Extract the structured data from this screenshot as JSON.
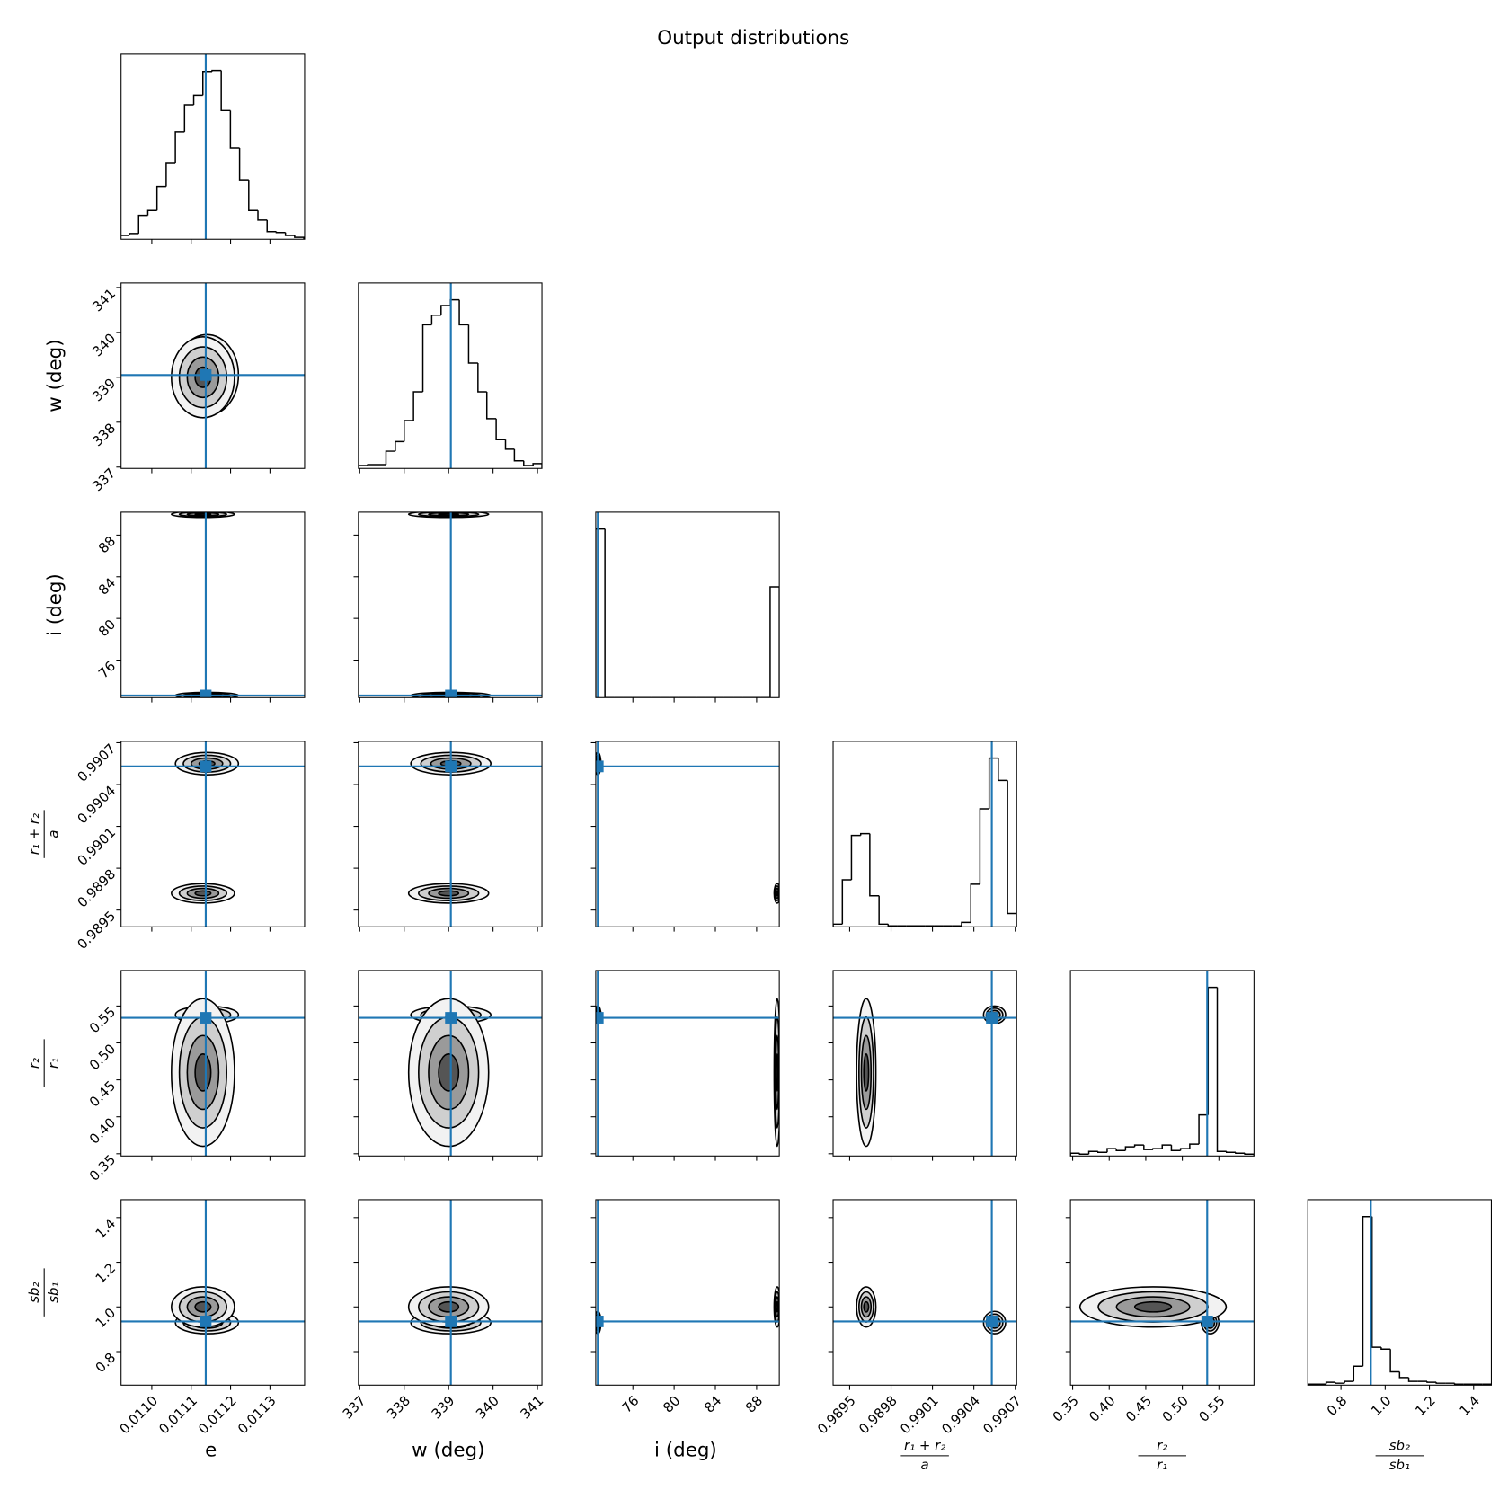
{
  "chart_data": {
    "type": "corner",
    "title": "Output distributions",
    "truth_color": "#1f77b4",
    "parameters": [
      {
        "label": "e",
        "lim": [
          0.010922,
          0.011388
        ],
        "ticks": [
          {
            "value": 0.011,
            "label": "0.0110"
          },
          0.0111,
          0.0112,
          0.0113
        ],
        "truth": 0.011137,
        "bins": [
          0.01092,
          0.0109433,
          0.0109666,
          0.0109899,
          0.0110132,
          0.0110365,
          0.0110598,
          0.0110831,
          0.0111064,
          0.0111297,
          0.011153,
          0.0111763,
          0.0111996,
          0.0112229,
          0.0112462,
          0.0112695,
          0.0112928,
          0.0113161,
          0.0113394,
          0.0113627,
          0.011386
        ],
        "counts": [
          4,
          6,
          25,
          30,
          55,
          80,
          112,
          140,
          150,
          175,
          176,
          135,
          95,
          62,
          30,
          20,
          8,
          7,
          4,
          2
        ]
      },
      {
        "label": "w (deg)",
        "lim": [
          336.97,
          341.1
        ],
        "ticks": [
          337,
          338,
          339,
          340,
          341
        ],
        "truth": 339.05,
        "bins": [
          336.97,
          337.18,
          337.38,
          337.59,
          337.8,
          338.0,
          338.21,
          338.42,
          338.62,
          338.83,
          339.04,
          339.24,
          339.45,
          339.66,
          339.86,
          340.07,
          340.28,
          340.48,
          340.69,
          340.9,
          341.1
        ],
        "counts": [
          3,
          4,
          4,
          18,
          28,
          50,
          80,
          150,
          160,
          170,
          176,
          150,
          110,
          80,
          52,
          30,
          20,
          8,
          3,
          5
        ]
      },
      {
        "label": "i (deg)",
        "lim": [
          72.4,
          90.2
        ],
        "ticks": [
          76,
          80,
          84,
          88
        ],
        "truth": 72.6,
        "bins": [
          72.4,
          73.29,
          74.18,
          75.07,
          75.96,
          76.85,
          77.74,
          78.63,
          79.52,
          80.41,
          81.3,
          82.19,
          83.08,
          83.97,
          84.86,
          85.75,
          86.64,
          87.53,
          88.42,
          89.31,
          90.2
        ],
        "counts": [
          175,
          0,
          0,
          0,
          0,
          0,
          0,
          0,
          0,
          0,
          0,
          0,
          0,
          0,
          0,
          0,
          0,
          0,
          0,
          115
        ]
      },
      {
        "label": {
          "numerator": "r₁ + r₂",
          "denominator": "a"
        },
        "lim": [
          0.98938,
          0.99071
        ],
        "ticks": [
          0.9895,
          0.9898,
          0.9901,
          0.9904,
          0.9907
        ],
        "truth": 0.99053,
        "bins": [
          0.98938,
          0.989447,
          0.989513,
          0.98958,
          0.989646,
          0.989713,
          0.989779,
          0.989846,
          0.989912,
          0.989979,
          0.990045,
          0.990112,
          0.990178,
          0.990245,
          0.990311,
          0.990378,
          0.990444,
          0.990511,
          0.990577,
          0.990644,
          0.99071
        ],
        "counts": [
          3,
          53,
          103,
          105,
          35,
          3,
          1,
          1,
          1,
          1,
          1,
          1,
          1,
          1,
          5,
          48,
          133,
          190,
          165,
          15
        ]
      },
      {
        "label": {
          "numerator": "r₂",
          "denominator": "r₁"
        },
        "lim": [
          0.347,
          0.598
        ],
        "ticks": [
          0.35,
          {
            "value": 0.4,
            "label": "0.40"
          },
          0.45,
          {
            "value": 0.5,
            "label": "0.50"
          },
          0.55
        ],
        "truth": 0.534,
        "bins": [
          0.347,
          0.35955,
          0.3721,
          0.38465,
          0.3972,
          0.40975,
          0.4223,
          0.43485,
          0.4474,
          0.45995,
          0.4725,
          0.48505,
          0.4976,
          0.51015,
          0.5227,
          0.53525,
          0.5478,
          0.56035,
          0.5729,
          0.58545,
          0.598
        ],
        "counts": [
          3,
          2,
          5,
          4,
          8,
          6,
          10,
          12,
          7,
          8,
          12,
          6,
          8,
          13,
          45,
          185,
          5,
          4,
          3,
          2
        ]
      },
      {
        "label": {
          "numerator": "sb₂",
          "denominator": "sb₁"
        },
        "lim": [
          0.65,
          1.48
        ],
        "ticks": [
          0.8,
          {
            "value": 1.0,
            "label": "1.0"
          },
          1.2,
          1.4
        ],
        "truth": 0.935,
        "bins": [
          0.65,
          0.6915,
          0.733,
          0.7745,
          0.816,
          0.8575,
          0.899,
          0.9405,
          0.982,
          1.0235,
          1.065,
          1.1065,
          1.148,
          1.1895,
          1.231,
          1.2725,
          1.314,
          1.3555,
          1.397,
          1.4385,
          1.48
        ],
        "counts": [
          1,
          1,
          3,
          2,
          4,
          20,
          178,
          40,
          38,
          14,
          8,
          4,
          4,
          3,
          2,
          2,
          1,
          1,
          1,
          1
        ]
      }
    ],
    "clusters": [
      {
        "mean": [
          0.01114,
          339.05,
          72.6,
          0.99055,
          0.538,
          0.93
        ],
        "sd": [
          4e-05,
          0.45,
          0.15,
          4e-05,
          0.006,
          0.025
        ]
      },
      {
        "mean": [
          0.01113,
          339.0,
          90.0,
          0.98962,
          0.46,
          1.0
        ],
        "sd": [
          4e-05,
          0.45,
          0.15,
          3.5e-05,
          0.05,
          0.045
        ]
      }
    ]
  }
}
